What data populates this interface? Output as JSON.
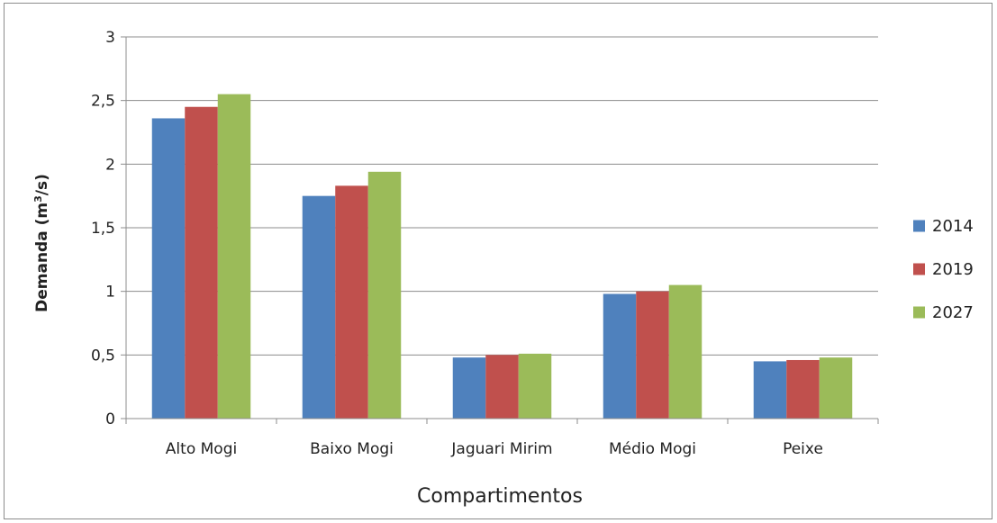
{
  "chart_data": {
    "type": "bar",
    "title": "",
    "xlabel": "Compartimentos",
    "ylabel_main": "Demanda (m",
    "ylabel_sup": "3",
    "ylabel_tail": "/s)",
    "ylim": [
      0,
      3
    ],
    "yticks": [
      {
        "value": 0,
        "label": "0"
      },
      {
        "value": 0.5,
        "label": "0,5"
      },
      {
        "value": 1,
        "label": "1"
      },
      {
        "value": 1.5,
        "label": "1,5"
      },
      {
        "value": 2,
        "label": "2"
      },
      {
        "value": 2.5,
        "label": "2,5"
      },
      {
        "value": 3,
        "label": "3"
      }
    ],
    "grid": true,
    "legend_position": "right",
    "categories": [
      "Alto Mogi",
      "Baixo Mogi",
      "Jaguari Mirim",
      "Médio Mogi",
      "Peixe"
    ],
    "series": [
      {
        "name": "2014",
        "color": "#4f81bd",
        "values": [
          2.36,
          1.75,
          0.48,
          0.98,
          0.45
        ]
      },
      {
        "name": "2019",
        "color": "#c0504d",
        "values": [
          2.45,
          1.83,
          0.5,
          1.0,
          0.46
        ]
      },
      {
        "name": "2027",
        "color": "#9bbb59",
        "values": [
          2.55,
          1.94,
          0.51,
          1.05,
          0.48
        ]
      }
    ]
  }
}
